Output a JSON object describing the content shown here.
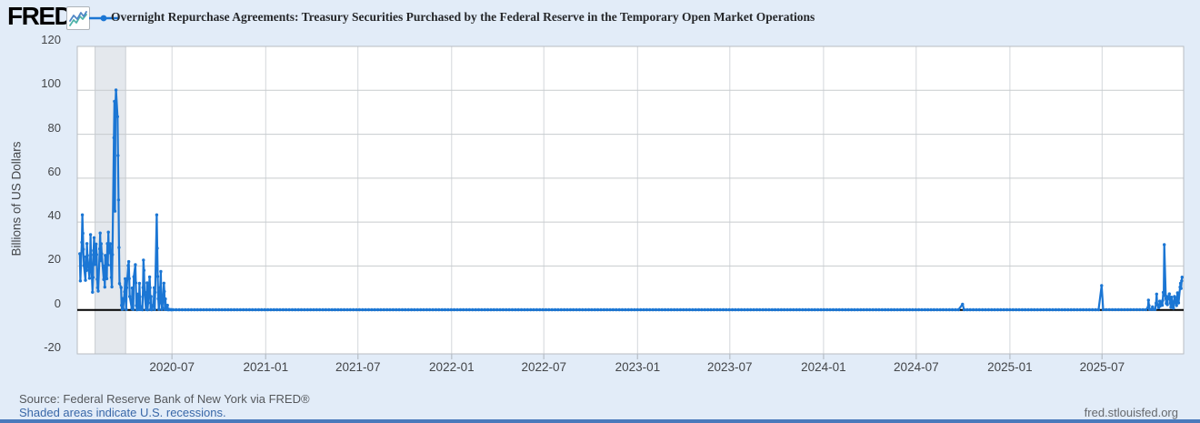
{
  "header": {
    "logo_text": "FRED",
    "logo_registered": "®",
    "series_title": "Overnight Repurchase Agreements: Treasury Securities Purchased by the Federal Reserve in the Temporary Open Market Operations"
  },
  "footer": {
    "source_text": "Source: Federal Reserve Bank of New York via FRED®",
    "recession_note": "Shaded areas indicate U.S. recessions.",
    "site_url": "fred.stlouisfed.org"
  },
  "chart_data": {
    "type": "line",
    "title": "Overnight Repurchase Agreements: Treasury Securities Purchased by the Federal Reserve in the Temporary Open Market Operations",
    "xlabel": "",
    "ylabel": "Billions of US Dollars",
    "ylim": [
      -20,
      120
    ],
    "xlim": [
      "2019-12-28",
      "2025-12-08"
    ],
    "grid": true,
    "legend_position": "top",
    "zero_line": 0,
    "y_ticks": [
      {
        "value": 120,
        "label": "120"
      },
      {
        "value": 100,
        "label": "100"
      },
      {
        "value": 80,
        "label": "80"
      },
      {
        "value": 60,
        "label": "60"
      },
      {
        "value": 40,
        "label": "40"
      },
      {
        "value": 20,
        "label": "20"
      },
      {
        "value": 0,
        "label": "0"
      },
      {
        "value": -20,
        "label": "-20"
      }
    ],
    "x_ticks": [
      {
        "date": "2020-07-01",
        "label": "2020-07"
      },
      {
        "date": "2021-01-01",
        "label": "2021-01"
      },
      {
        "date": "2021-07-01",
        "label": "2021-07"
      },
      {
        "date": "2022-01-01",
        "label": "2022-01"
      },
      {
        "date": "2022-07-01",
        "label": "2022-07"
      },
      {
        "date": "2023-01-01",
        "label": "2023-01"
      },
      {
        "date": "2023-07-01",
        "label": "2023-07"
      },
      {
        "date": "2024-01-01",
        "label": "2024-01"
      },
      {
        "date": "2024-07-01",
        "label": "2024-07"
      },
      {
        "date": "2025-01-01",
        "label": "2025-01"
      },
      {
        "date": "2025-07-01",
        "label": "2025-07"
      }
    ],
    "recessions": [
      {
        "start": "2020-02-01",
        "end": "2020-04-01"
      }
    ],
    "style": {
      "background": "#e2ecf8",
      "plot_background": "#ffffff",
      "grid_h": "#c7cbce",
      "grid_v": "#d3d7db",
      "plot_border": "#b8bdc2",
      "tick_mark": "#bcc4cd",
      "series": "#1b76d4",
      "zero_line": "#000000",
      "recession_fill": "#e4e8ed",
      "recession_edge": "#c9cdd2"
    },
    "series": [
      {
        "name": "Overnight Repurchase Agreements: Treasury Securities Purchased by the Federal Reserve in the Temporary Open Market Operations",
        "color": "#1b76d4",
        "points": [
          [
            "2020-01-02",
            25.6
          ],
          [
            "2020-01-03",
            13.2
          ],
          [
            "2020-01-06",
            30.8
          ],
          [
            "2020-01-07",
            43.3
          ],
          [
            "2020-01-08",
            34.9
          ],
          [
            "2020-01-09",
            27.6
          ],
          [
            "2020-01-10",
            20.2
          ],
          [
            "2020-01-13",
            13.5
          ],
          [
            "2020-01-14",
            24.2
          ],
          [
            "2020-01-15",
            18.0
          ],
          [
            "2020-01-16",
            30.2
          ],
          [
            "2020-01-17",
            24.8
          ],
          [
            "2020-01-21",
            14.4
          ],
          [
            "2020-01-22",
            19.7
          ],
          [
            "2020-01-23",
            34.3
          ],
          [
            "2020-01-24",
            25.1
          ],
          [
            "2020-01-27",
            8.1
          ],
          [
            "2020-01-28",
            14.8
          ],
          [
            "2020-01-29",
            27.0
          ],
          [
            "2020-01-30",
            32.9
          ],
          [
            "2020-01-31",
            20.7
          ],
          [
            "2020-02-03",
            30.0
          ],
          [
            "2020-02-04",
            25.2
          ],
          [
            "2020-02-05",
            14.0
          ],
          [
            "2020-02-06",
            10.1
          ],
          [
            "2020-02-07",
            8.6
          ],
          [
            "2020-02-10",
            27.8
          ],
          [
            "2020-02-11",
            35.0
          ],
          [
            "2020-02-12",
            22.4
          ],
          [
            "2020-02-13",
            30.1
          ],
          [
            "2020-02-14",
            25.5
          ],
          [
            "2020-02-18",
            13.9
          ],
          [
            "2020-02-19",
            20.0
          ],
          [
            "2020-02-20",
            10.4
          ],
          [
            "2020-02-21",
            24.8
          ],
          [
            "2020-02-24",
            14.2
          ],
          [
            "2020-02-25",
            30.2
          ],
          [
            "2020-02-26",
            20.5
          ],
          [
            "2020-02-27",
            35.4
          ],
          [
            "2020-02-28",
            26.0
          ],
          [
            "2020-03-02",
            30.1
          ],
          [
            "2020-03-03",
            20.3
          ],
          [
            "2020-03-04",
            14.8
          ],
          [
            "2020-03-05",
            10.5
          ],
          [
            "2020-03-06",
            25.2
          ],
          [
            "2020-03-09",
            78.4
          ],
          [
            "2020-03-10",
            95.0
          ],
          [
            "2020-03-11",
            45.0
          ],
          [
            "2020-03-12",
            93.5
          ],
          [
            "2020-03-13",
            100.1
          ],
          [
            "2020-03-16",
            88.0
          ],
          [
            "2020-03-17",
            70.3
          ],
          [
            "2020-03-18",
            50.1
          ],
          [
            "2020-03-19",
            28.4
          ],
          [
            "2020-03-20",
            12.0
          ],
          [
            "2020-03-23",
            10.2
          ],
          [
            "2020-03-24",
            2.1
          ],
          [
            "2020-03-25",
            0.3
          ],
          [
            "2020-03-26",
            5.2
          ],
          [
            "2020-03-27",
            0.5
          ],
          [
            "2020-03-30",
            8.3
          ],
          [
            "2020-03-31",
            14.2
          ],
          [
            "2020-04-01",
            5.0
          ],
          [
            "2020-04-02",
            0.2
          ],
          [
            "2020-04-03",
            10.1
          ],
          [
            "2020-04-06",
            20.2
          ],
          [
            "2020-04-07",
            22.0
          ],
          [
            "2020-04-08",
            14.3
          ],
          [
            "2020-04-09",
            6.1
          ],
          [
            "2020-04-13",
            0.5
          ],
          [
            "2020-04-14",
            10.0
          ],
          [
            "2020-04-15",
            5.2
          ],
          [
            "2020-04-16",
            0.2
          ],
          [
            "2020-04-17",
            15.1
          ],
          [
            "2020-04-20",
            20.6
          ],
          [
            "2020-04-21",
            12.3
          ],
          [
            "2020-04-22",
            2.0
          ],
          [
            "2020-04-23",
            0.1
          ],
          [
            "2020-04-24",
            7.2
          ],
          [
            "2020-04-27",
            0.2
          ],
          [
            "2020-04-28",
            12.1
          ],
          [
            "2020-04-29",
            6.0
          ],
          [
            "2020-04-30",
            0.2
          ],
          [
            "2020-05-01",
            1.5
          ],
          [
            "2020-05-04",
            0.1
          ],
          [
            "2020-05-05",
            10.2
          ],
          [
            "2020-05-06",
            22.7
          ],
          [
            "2020-05-07",
            18.0
          ],
          [
            "2020-05-08",
            8.1
          ],
          [
            "2020-05-11",
            0.2
          ],
          [
            "2020-05-12",
            5.1
          ],
          [
            "2020-05-13",
            12.3
          ],
          [
            "2020-05-14",
            0.1
          ],
          [
            "2020-05-15",
            3.2
          ],
          [
            "2020-05-18",
            15.0
          ],
          [
            "2020-05-19",
            10.1
          ],
          [
            "2020-05-20",
            0.2
          ],
          [
            "2020-05-21",
            6.1
          ],
          [
            "2020-05-22",
            0.1
          ],
          [
            "2020-05-26",
            2.2
          ],
          [
            "2020-05-27",
            10.1
          ],
          [
            "2020-05-28",
            0.2
          ],
          [
            "2020-05-29",
            8.0
          ],
          [
            "2020-06-01",
            43.3
          ],
          [
            "2020-06-02",
            28.1
          ],
          [
            "2020-06-03",
            15.2
          ],
          [
            "2020-06-04",
            5.1
          ],
          [
            "2020-06-05",
            0.3
          ],
          [
            "2020-06-08",
            10.2
          ],
          [
            "2020-06-09",
            17.5
          ],
          [
            "2020-06-10",
            3.1
          ],
          [
            "2020-06-11",
            0.2
          ],
          [
            "2020-06-12",
            1.0
          ],
          [
            "2020-06-15",
            12.2
          ],
          [
            "2020-06-16",
            8.4
          ],
          [
            "2020-06-17",
            0.3
          ],
          [
            "2020-06-18",
            5.0
          ],
          [
            "2020-06-19",
            0.2
          ],
          [
            "2020-06-22",
            2.1
          ],
          [
            "2020-06-23",
            0.1
          ],
          [
            "2020-06-24",
            0.3
          ],
          [
            "2020-06-25",
            0.1
          ],
          [
            "2020-06-26",
            0.2
          ],
          [
            "2020-06-29",
            0.1
          ],
          [
            "2020-06-30",
            0.1
          ],
          [
            "2024-09-30",
            2.6
          ],
          [
            "2025-06-30",
            11.05
          ],
          [
            "2025-09-29",
            1.1
          ],
          [
            "2025-09-30",
            4.5
          ],
          [
            "2025-10-01",
            2.0
          ],
          [
            "2025-10-02",
            0.3
          ],
          [
            "2025-10-06",
            0.2
          ],
          [
            "2025-10-08",
            1.4
          ],
          [
            "2025-10-09",
            0.3
          ],
          [
            "2025-10-13",
            0.2
          ],
          [
            "2025-10-15",
            3.1
          ],
          [
            "2025-10-16",
            7.2
          ],
          [
            "2025-10-17",
            2.4
          ],
          [
            "2025-10-20",
            1.0
          ],
          [
            "2025-10-21",
            2.2
          ],
          [
            "2025-10-22",
            4.0
          ],
          [
            "2025-10-23",
            1.8
          ],
          [
            "2025-10-24",
            3.5
          ],
          [
            "2025-10-27",
            2.1
          ],
          [
            "2025-10-28",
            4.3
          ],
          [
            "2025-10-29",
            8.0
          ],
          [
            "2025-10-30",
            6.5
          ],
          [
            "2025-10-31",
            29.7
          ],
          [
            "2025-11-03",
            5.2
          ],
          [
            "2025-11-04",
            3.0
          ],
          [
            "2025-11-05",
            6.1
          ],
          [
            "2025-11-06",
            2.4
          ],
          [
            "2025-11-07",
            5.0
          ],
          [
            "2025-11-10",
            7.3
          ],
          [
            "2025-11-12",
            3.1
          ],
          [
            "2025-11-13",
            1.2
          ],
          [
            "2025-11-14",
            5.8
          ],
          [
            "2025-11-17",
            2.3
          ],
          [
            "2025-11-18",
            0.8
          ],
          [
            "2025-11-19",
            3.2
          ],
          [
            "2025-11-20",
            6.1
          ],
          [
            "2025-11-21",
            4.4
          ],
          [
            "2025-11-24",
            2.0
          ],
          [
            "2025-11-25",
            5.5
          ],
          [
            "2025-11-26",
            7.8
          ],
          [
            "2025-11-28",
            3.2
          ],
          [
            "2025-12-01",
            10.4
          ],
          [
            "2025-12-02",
            12.1
          ],
          [
            "2025-12-03",
            9.8
          ],
          [
            "2025-12-04",
            13.2
          ],
          [
            "2025-12-05",
            14.9
          ]
        ],
        "flat_segments": [
          {
            "start": "2020-07-03",
            "end": "2024-09-26",
            "step_days": 6,
            "value": 0.1
          },
          {
            "start": "2024-10-03",
            "end": "2025-06-26",
            "step_days": 6,
            "value": 0.1
          },
          {
            "start": "2025-07-03",
            "end": "2025-09-25",
            "step_days": 6,
            "value": 0.12
          }
        ]
      }
    ]
  }
}
